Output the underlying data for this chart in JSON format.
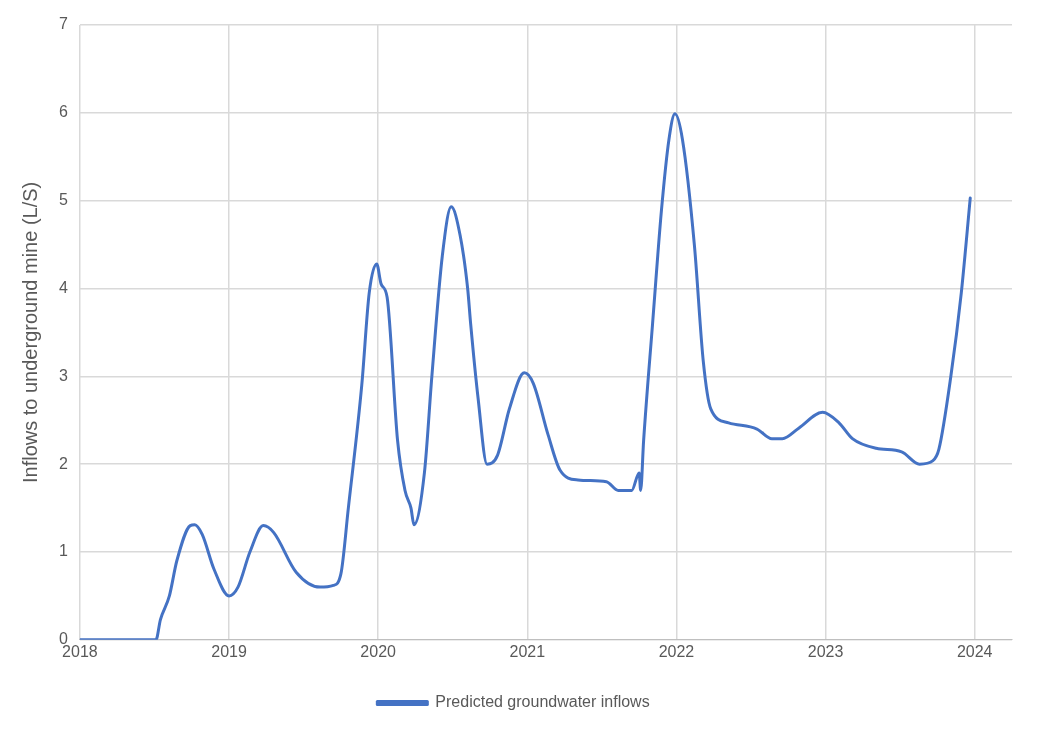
{
  "chart_data": {
    "type": "line",
    "ylabel": "Inflows to underground mine (L/S)",
    "xlim": [
      2018,
      2024.25
    ],
    "xticks": [
      2018,
      2019,
      2020,
      2021,
      2022,
      2023,
      2024
    ],
    "ylim": [
      0,
      7
    ],
    "yticks": [
      0,
      1,
      2,
      3,
      4,
      5,
      6,
      7
    ],
    "grid": true,
    "legend": "bottom",
    "marker": "none",
    "line_style": "solid",
    "series": [
      {
        "name": "Predicted groundwater inflows",
        "color": "#4472c4",
        "x": [
          2018,
          2018.32,
          2018.46,
          2018.51,
          2018.54,
          2018.6,
          2018.65,
          2018.74,
          2018.77,
          2018.82,
          2018.9,
          2019.0,
          2019.06,
          2019.14,
          2019.23,
          2019.3,
          2019.45,
          2019.61,
          2019.7,
          2019.75,
          2019.8,
          2019.89,
          2019.94,
          2019.99,
          2020.02,
          2020.06,
          2020.13,
          2020.18,
          2020.22,
          2020.24,
          2020.31,
          2020.36,
          2020.43,
          2020.49,
          2020.55,
          2020.6,
          2020.62,
          2020.67,
          2020.73,
          2020.8,
          2020.88,
          2020.98,
          2021.04,
          2021.14,
          2021.22,
          2021.34,
          2021.53,
          2021.61,
          2021.7,
          2021.75,
          2021.76,
          2021.78,
          2021.84,
          2021.9,
          2021.95,
          2021.99,
          2022.04,
          2022.12,
          2022.18,
          2022.23,
          2022.35,
          2022.54,
          2022.64,
          2022.71,
          2022.82,
          2022.98,
          2023.09,
          2023.18,
          2023.34,
          2023.51,
          2023.63,
          2023.72,
          2023.76,
          2023.84,
          2023.91,
          2023.97
        ],
        "values": [
          0,
          0,
          0,
          0,
          0.23,
          0.5,
          0.9,
          1.3,
          1.31,
          1.2,
          0.8,
          0.5,
          0.6,
          1.0,
          1.3,
          1.22,
          0.77,
          0.6,
          0.62,
          0.75,
          1.5,
          2.9,
          3.95,
          4.28,
          4.05,
          3.9,
          2.27,
          1.7,
          1.5,
          1.31,
          1.9,
          3.0,
          4.37,
          4.93,
          4.6,
          4.0,
          3.6,
          2.75,
          2.0,
          2.1,
          2.63,
          3.04,
          2.92,
          2.33,
          1.93,
          1.82,
          1.8,
          1.7,
          1.7,
          1.9,
          1.7,
          2.27,
          3.6,
          4.9,
          5.7,
          5.99,
          5.7,
          4.5,
          3.17,
          2.63,
          2.47,
          2.4,
          2.29,
          2.29,
          2.41,
          2.59,
          2.47,
          2.29,
          2.18,
          2.14,
          2.0,
          2.04,
          2.17,
          3.0,
          3.95,
          5.03
        ]
      }
    ]
  }
}
